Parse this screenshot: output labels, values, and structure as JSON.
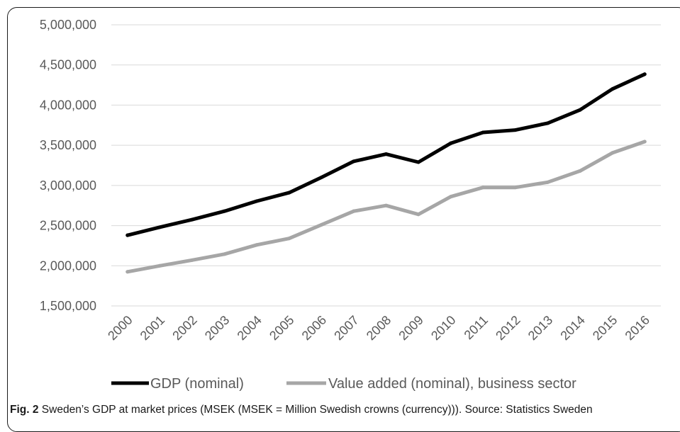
{
  "caption": {
    "label": "Fig. 2",
    "text": "Sweden’s GDP at market prices (MSEK (MSEK = Million Swedish crowns (currency))). Source: Statistics Sweden"
  },
  "chart_data": {
    "type": "line",
    "categories": [
      "2000",
      "2001",
      "2002",
      "2003",
      "2004",
      "2005",
      "2006",
      "2007",
      "2008",
      "2009",
      "2010",
      "2011",
      "2012",
      "2013",
      "2014",
      "2015",
      "2016"
    ],
    "ylim": [
      1500000,
      5000000
    ],
    "yticks": [
      1500000,
      2000000,
      2500000,
      3000000,
      3500000,
      4000000,
      4500000,
      5000000
    ],
    "ytick_labels": [
      "1,500,000",
      "2,000,000",
      "2,500,000",
      "3,000,000",
      "3,500,000",
      "4,000,000",
      "4,500,000",
      "5,000,000"
    ],
    "grid": true,
    "legend_position": "bottom",
    "series": [
      {
        "name": "GDP (nominal)",
        "color": "#000000",
        "values": [
          2380000,
          2480000,
          2575000,
          2680000,
          2805000,
          2910000,
          3100000,
          3300000,
          3390000,
          3290000,
          3525000,
          3660000,
          3690000,
          3775000,
          3940000,
          4200000,
          4385000
        ]
      },
      {
        "name": "Value added (nominal), business sector",
        "color": "#a6a6a6",
        "values": [
          1925000,
          2000000,
          2070000,
          2145000,
          2260000,
          2340000,
          2510000,
          2680000,
          2750000,
          2640000,
          2860000,
          2975000,
          2975000,
          3040000,
          3180000,
          3405000,
          3545000
        ]
      }
    ]
  }
}
